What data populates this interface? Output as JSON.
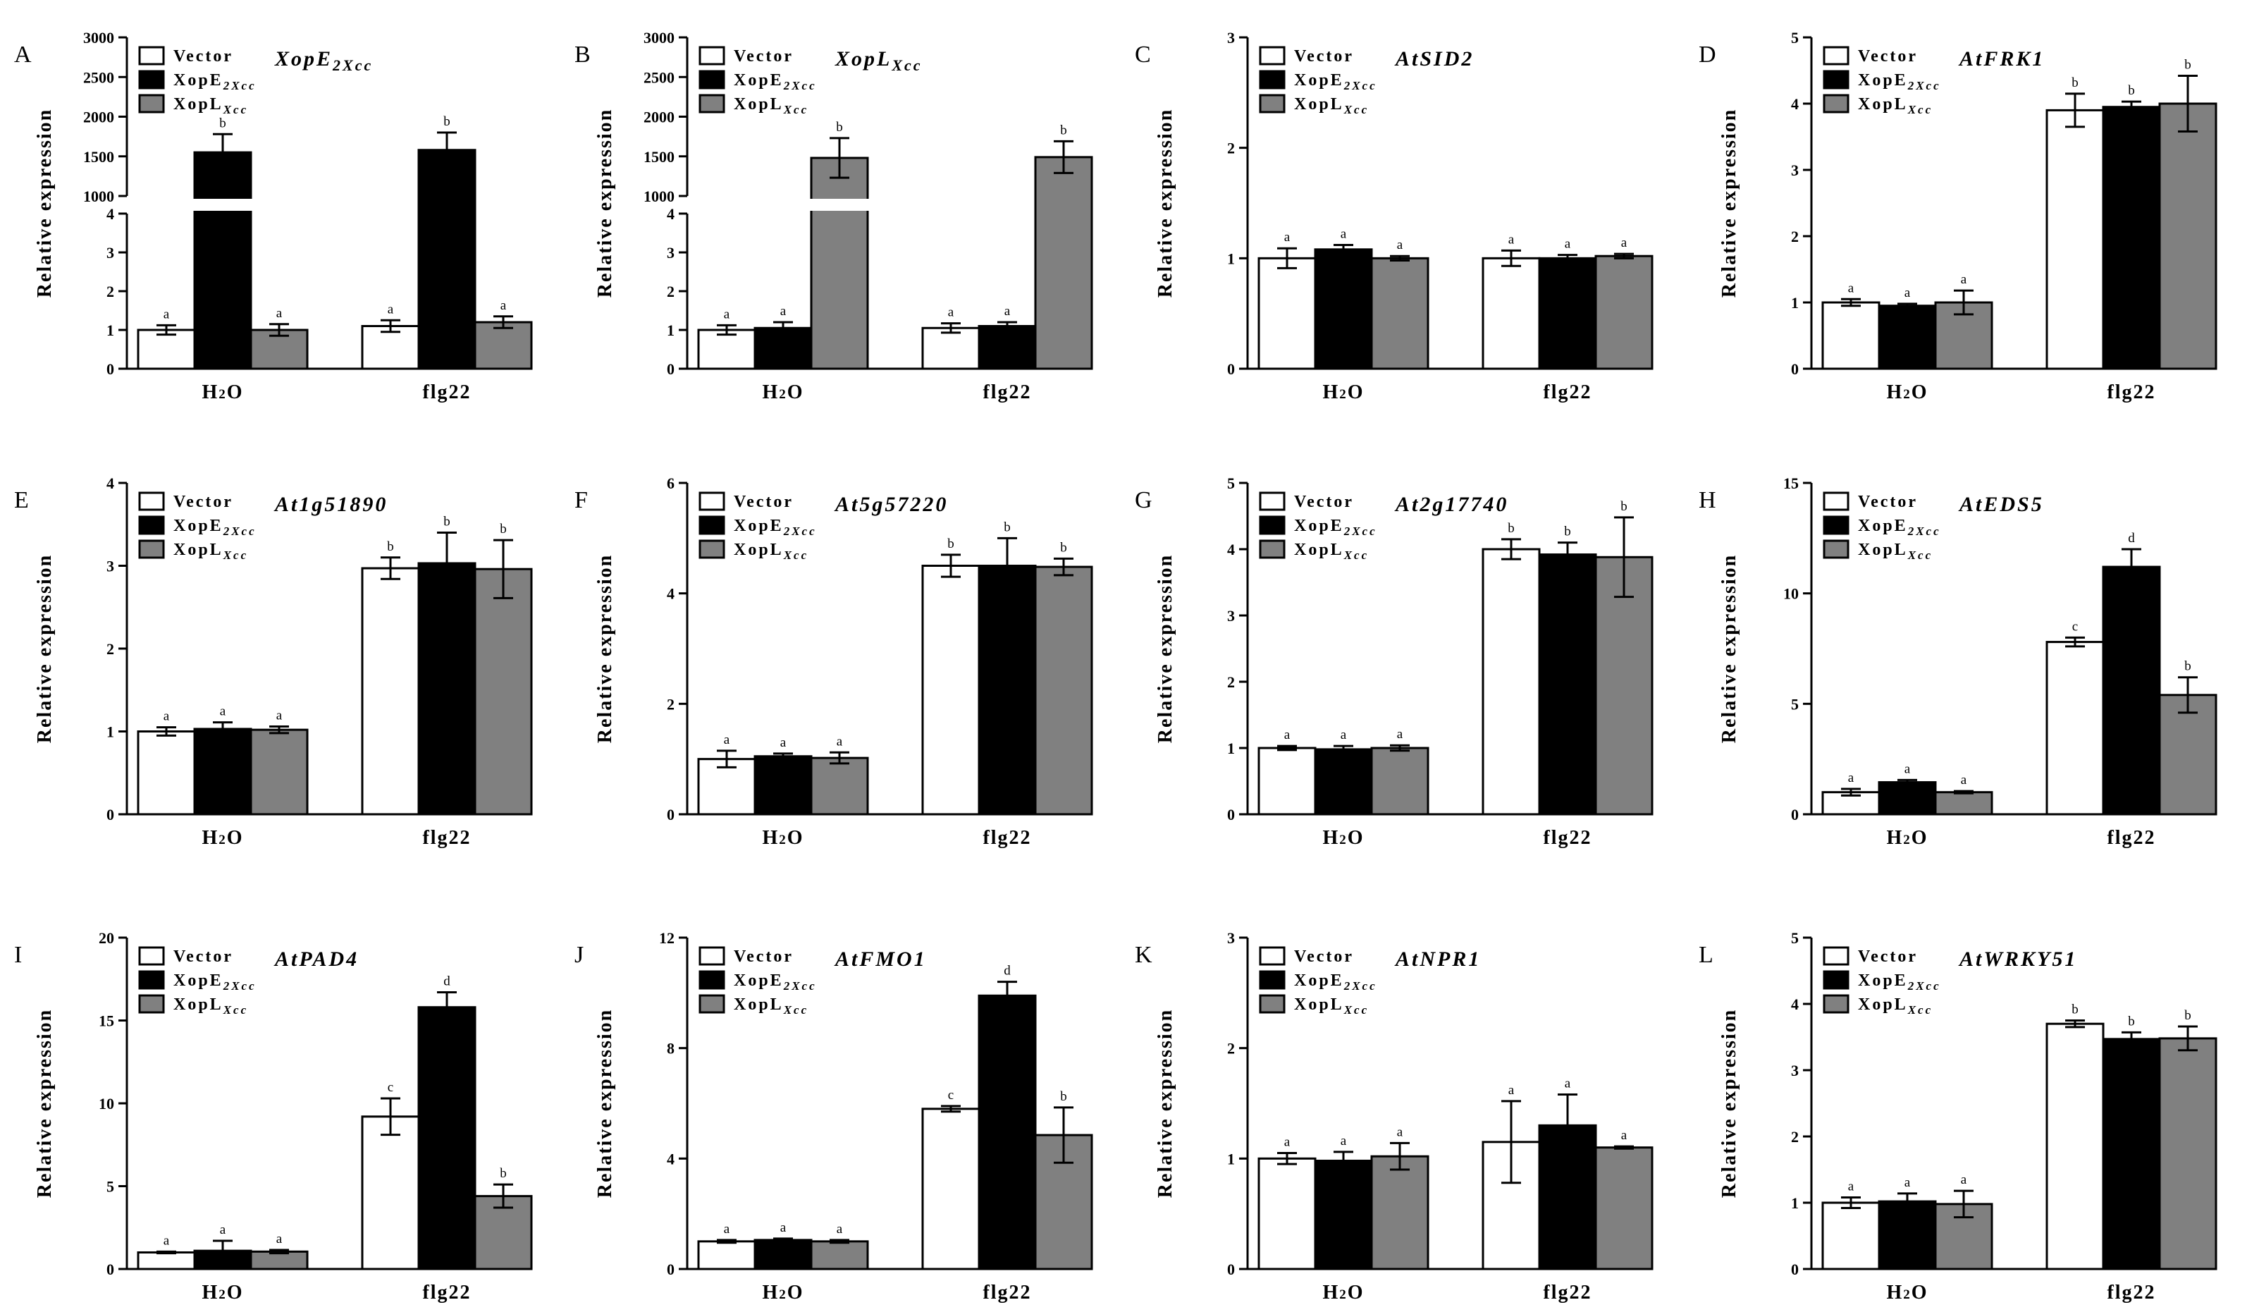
{
  "figure": {
    "colors": {
      "vector": "#ffffff",
      "xope2": "#000000",
      "xopl": "#808080",
      "stroke": "#000000"
    },
    "legend": {
      "vector": "Vector",
      "xope2_main": "XopE",
      "xope2_sub": "2Xcc",
      "xopl_main": "XopL",
      "xopl_sub": "Xcc"
    },
    "ylabel": "Relative expression",
    "categories": [
      "H2O",
      "flg22"
    ]
  },
  "chart_data": [
    {
      "id": "A",
      "type": "bar",
      "title": "XopE",
      "title_sub": "2Xcc",
      "broken_axis": true,
      "lower_ylim": [
        0,
        4
      ],
      "upper_ylim": [
        1000,
        3000
      ],
      "lower_ticks": [
        0,
        1,
        2,
        3,
        4
      ],
      "upper_ticks": [
        1000,
        1500,
        2000,
        2500,
        3000
      ],
      "series": [
        {
          "name": "Vector",
          "values": [
            1.0,
            1.1
          ],
          "errors": [
            0.12,
            0.15
          ],
          "sig": [
            "a",
            "a"
          ]
        },
        {
          "name": "XopE2Xcc",
          "values": [
            1550,
            1580
          ],
          "errors": [
            230,
            220
          ],
          "sig": [
            "b",
            "b"
          ]
        },
        {
          "name": "XopLXcc",
          "values": [
            1.0,
            1.2
          ],
          "errors": [
            0.15,
            0.15
          ],
          "sig": [
            "a",
            "a"
          ]
        }
      ]
    },
    {
      "id": "B",
      "type": "bar",
      "title": "XopL",
      "title_sub": "Xcc",
      "broken_axis": true,
      "lower_ylim": [
        0,
        4
      ],
      "upper_ylim": [
        1000,
        3000
      ],
      "lower_ticks": [
        0,
        1,
        2,
        3,
        4
      ],
      "upper_ticks": [
        1000,
        1500,
        2000,
        2500,
        3000
      ],
      "series": [
        {
          "name": "Vector",
          "values": [
            1.0,
            1.05
          ],
          "errors": [
            0.12,
            0.12
          ],
          "sig": [
            "a",
            "a"
          ]
        },
        {
          "name": "XopE2Xcc",
          "values": [
            1.05,
            1.1
          ],
          "errors": [
            0.15,
            0.1
          ],
          "sig": [
            "a",
            "a"
          ]
        },
        {
          "name": "XopLXcc",
          "values": [
            1480,
            1490
          ],
          "errors": [
            250,
            200
          ],
          "sig": [
            "b",
            "b"
          ]
        }
      ]
    },
    {
      "id": "C",
      "type": "bar",
      "title": "AtSID2",
      "ylim": [
        0,
        3
      ],
      "ticks": [
        0,
        1,
        2,
        3
      ],
      "series": [
        {
          "name": "Vector",
          "values": [
            1.0,
            1.0
          ],
          "errors": [
            0.09,
            0.07
          ],
          "sig": [
            "a",
            "a"
          ]
        },
        {
          "name": "XopE2Xcc",
          "values": [
            1.08,
            1.0
          ],
          "errors": [
            0.04,
            0.03
          ],
          "sig": [
            "a",
            "a"
          ]
        },
        {
          "name": "XopLXcc",
          "values": [
            1.0,
            1.02
          ],
          "errors": [
            0.02,
            0.02
          ],
          "sig": [
            "a",
            "a"
          ]
        }
      ]
    },
    {
      "id": "D",
      "type": "bar",
      "title": "AtFRK1",
      "ylim": [
        0,
        5
      ],
      "ticks": [
        0,
        1,
        2,
        3,
        4,
        5
      ],
      "series": [
        {
          "name": "Vector",
          "values": [
            1.0,
            3.9
          ],
          "errors": [
            0.05,
            0.25
          ],
          "sig": [
            "a",
            "b"
          ]
        },
        {
          "name": "XopE2Xcc",
          "values": [
            0.95,
            3.95
          ],
          "errors": [
            0.03,
            0.08
          ],
          "sig": [
            "a",
            "b"
          ]
        },
        {
          "name": "XopLXcc",
          "values": [
            1.0,
            4.0
          ],
          "errors": [
            0.18,
            0.42
          ],
          "sig": [
            "a",
            "b"
          ]
        }
      ]
    },
    {
      "id": "E",
      "type": "bar",
      "title": "At1g51890",
      "ylim": [
        0,
        4
      ],
      "ticks": [
        0,
        1,
        2,
        3,
        4
      ],
      "series": [
        {
          "name": "Vector",
          "values": [
            1.0,
            2.97
          ],
          "errors": [
            0.05,
            0.13
          ],
          "sig": [
            "a",
            "b"
          ]
        },
        {
          "name": "XopE2Xcc",
          "values": [
            1.03,
            3.03
          ],
          "errors": [
            0.08,
            0.37
          ],
          "sig": [
            "a",
            "b"
          ]
        },
        {
          "name": "XopLXcc",
          "values": [
            1.02,
            2.96
          ],
          "errors": [
            0.04,
            0.35
          ],
          "sig": [
            "a",
            "b"
          ]
        }
      ]
    },
    {
      "id": "F",
      "type": "bar",
      "title": "At5g57220",
      "ylim": [
        0,
        6
      ],
      "ticks": [
        0,
        2,
        4,
        6
      ],
      "series": [
        {
          "name": "Vector",
          "values": [
            1.0,
            4.5
          ],
          "errors": [
            0.15,
            0.2
          ],
          "sig": [
            "a",
            "b"
          ]
        },
        {
          "name": "XopE2Xcc",
          "values": [
            1.05,
            4.5
          ],
          "errors": [
            0.05,
            0.5
          ],
          "sig": [
            "a",
            "b"
          ]
        },
        {
          "name": "XopLXcc",
          "values": [
            1.02,
            4.48
          ],
          "errors": [
            0.1,
            0.15
          ],
          "sig": [
            "a",
            "b"
          ]
        }
      ]
    },
    {
      "id": "G",
      "type": "bar",
      "title": "At2g17740",
      "ylim": [
        0,
        5
      ],
      "ticks": [
        0,
        1,
        2,
        3,
        4,
        5
      ],
      "series": [
        {
          "name": "Vector",
          "values": [
            1.0,
            4.0
          ],
          "errors": [
            0.03,
            0.15
          ],
          "sig": [
            "a",
            "b"
          ]
        },
        {
          "name": "XopE2Xcc",
          "values": [
            0.98,
            3.92
          ],
          "errors": [
            0.05,
            0.18
          ],
          "sig": [
            "a",
            "b"
          ]
        },
        {
          "name": "XopLXcc",
          "values": [
            1.0,
            3.88
          ],
          "errors": [
            0.04,
            0.6
          ],
          "sig": [
            "a",
            "b"
          ]
        }
      ]
    },
    {
      "id": "H",
      "type": "bar",
      "title": "AtEDS5",
      "ylim": [
        0,
        15
      ],
      "ticks": [
        0,
        5,
        10,
        15
      ],
      "series": [
        {
          "name": "Vector",
          "values": [
            1.0,
            7.8
          ],
          "errors": [
            0.15,
            0.2
          ],
          "sig": [
            "a",
            "c"
          ]
        },
        {
          "name": "XopE2Xcc",
          "values": [
            1.45,
            11.2
          ],
          "errors": [
            0.1,
            0.8
          ],
          "sig": [
            "a",
            "d"
          ]
        },
        {
          "name": "XopLXcc",
          "values": [
            1.0,
            5.4
          ],
          "errors": [
            0.05,
            0.8
          ],
          "sig": [
            "a",
            "b"
          ]
        }
      ]
    },
    {
      "id": "I",
      "type": "bar",
      "title": "AtPAD4",
      "ylim": [
        0,
        20
      ],
      "ticks": [
        0,
        5,
        10,
        15,
        20
      ],
      "series": [
        {
          "name": "Vector",
          "values": [
            1.0,
            9.2
          ],
          "errors": [
            0.05,
            1.1
          ],
          "sig": [
            "a",
            "c"
          ]
        },
        {
          "name": "XopE2Xcc",
          "values": [
            1.1,
            15.8
          ],
          "errors": [
            0.6,
            0.9
          ],
          "sig": [
            "a",
            "d"
          ]
        },
        {
          "name": "XopLXcc",
          "values": [
            1.05,
            4.4
          ],
          "errors": [
            0.1,
            0.7
          ],
          "sig": [
            "a",
            "b"
          ]
        }
      ]
    },
    {
      "id": "J",
      "type": "bar",
      "title": "AtFMO1",
      "ylim": [
        0,
        12
      ],
      "ticks": [
        0,
        4,
        8,
        12
      ],
      "series": [
        {
          "name": "Vector",
          "values": [
            1.0,
            5.8
          ],
          "errors": [
            0.05,
            0.1
          ],
          "sig": [
            "a",
            "c"
          ]
        },
        {
          "name": "XopE2Xcc",
          "values": [
            1.05,
            9.9
          ],
          "errors": [
            0.05,
            0.5
          ],
          "sig": [
            "a",
            "d"
          ]
        },
        {
          "name": "XopLXcc",
          "values": [
            1.0,
            4.85
          ],
          "errors": [
            0.05,
            1.0
          ],
          "sig": [
            "a",
            "b"
          ]
        }
      ]
    },
    {
      "id": "K",
      "type": "bar",
      "title": "AtNPR1",
      "ylim": [
        0,
        3
      ],
      "ticks": [
        0,
        1,
        2,
        3
      ],
      "series": [
        {
          "name": "Vector",
          "values": [
            1.0,
            1.15
          ],
          "errors": [
            0.05,
            0.37
          ],
          "sig": [
            "a",
            "a"
          ]
        },
        {
          "name": "XopE2Xcc",
          "values": [
            0.98,
            1.3
          ],
          "errors": [
            0.08,
            0.28
          ],
          "sig": [
            "a",
            "a"
          ]
        },
        {
          "name": "XopLXcc",
          "values": [
            1.02,
            1.1
          ],
          "errors": [
            0.12,
            0.01
          ],
          "sig": [
            "a",
            "a"
          ]
        }
      ]
    },
    {
      "id": "L",
      "type": "bar",
      "title": "AtWRKY51",
      "ylim": [
        0,
        5
      ],
      "ticks": [
        0,
        1,
        2,
        3,
        4,
        5
      ],
      "series": [
        {
          "name": "Vector",
          "values": [
            1.0,
            3.7
          ],
          "errors": [
            0.08,
            0.05
          ],
          "sig": [
            "a",
            "b"
          ]
        },
        {
          "name": "XopE2Xcc",
          "values": [
            1.02,
            3.47
          ],
          "errors": [
            0.12,
            0.1
          ],
          "sig": [
            "a",
            "b"
          ]
        },
        {
          "name": "XopLXcc",
          "values": [
            0.98,
            3.48
          ],
          "errors": [
            0.2,
            0.18
          ],
          "sig": [
            "a",
            "b"
          ]
        }
      ]
    }
  ]
}
